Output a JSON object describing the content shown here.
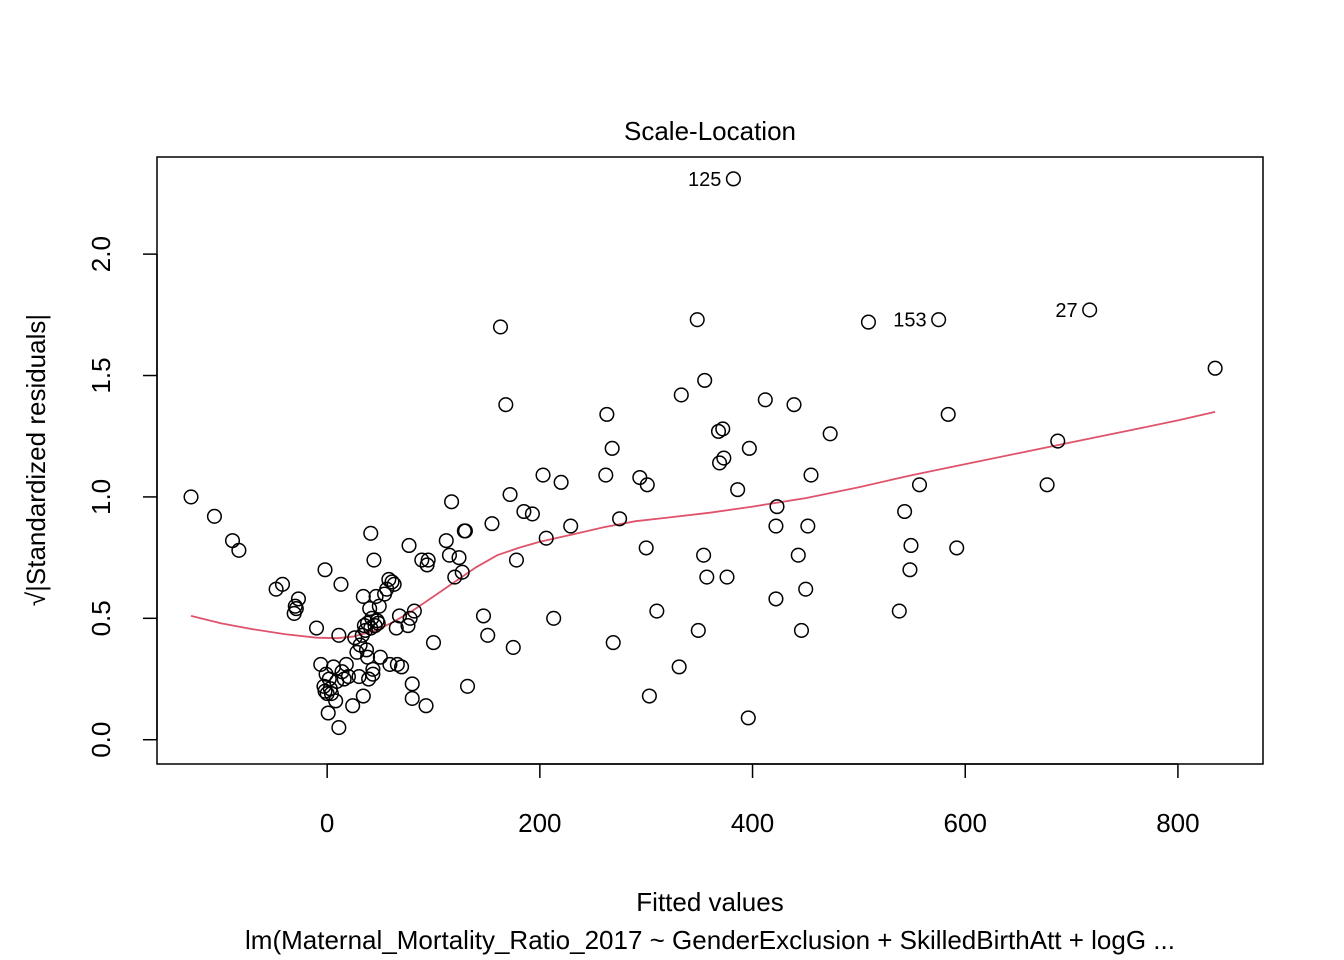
{
  "chart_data": {
    "type": "scatter",
    "title": "Scale-Location",
    "xlabel": "Fitted values",
    "ylabel": "√|Standardized residuals|",
    "subtitle": "lm(Maternal_Mortality_Ratio_2017 ~ GenderExclusion + SkilledBirthAtt + logG ...",
    "xlim": [
      -160,
      880
    ],
    "ylim": [
      -0.1,
      2.4
    ],
    "x_ticks": [
      0,
      200,
      400,
      600,
      800
    ],
    "x_tick_labels": [
      "0",
      "200",
      "400",
      "600",
      "800"
    ],
    "y_ticks": [
      0.0,
      0.5,
      1.0,
      1.5,
      2.0
    ],
    "y_tick_labels": [
      "0.0",
      "0.5",
      "1.0",
      "1.5",
      "2.0"
    ],
    "grid": false,
    "colors": {
      "points": "#000000",
      "smooth": "#DF536B"
    },
    "points": [
      {
        "x": -128,
        "y": 1.0
      },
      {
        "x": -106,
        "y": 0.92
      },
      {
        "x": -89,
        "y": 0.82
      },
      {
        "x": -83,
        "y": 0.78
      },
      {
        "x": -48,
        "y": 0.62
      },
      {
        "x": -42,
        "y": 0.64
      },
      {
        "x": -31,
        "y": 0.52
      },
      {
        "x": -30,
        "y": 0.55
      },
      {
        "x": -29,
        "y": 0.54
      },
      {
        "x": -27,
        "y": 0.58
      },
      {
        "x": -10,
        "y": 0.46
      },
      {
        "x": -6,
        "y": 0.31
      },
      {
        "x": -3,
        "y": 0.22
      },
      {
        "x": -2,
        "y": 0.7
      },
      {
        "x": -2,
        "y": 0.2
      },
      {
        "x": -1,
        "y": 0.27
      },
      {
        "x": 0,
        "y": 0.19
      },
      {
        "x": 1,
        "y": 0.11
      },
      {
        "x": 2,
        "y": 0.25
      },
      {
        "x": 3,
        "y": 0.21
      },
      {
        "x": 4,
        "y": 0.19
      },
      {
        "x": 6,
        "y": 0.3
      },
      {
        "x": 8,
        "y": 0.16
      },
      {
        "x": 9,
        "y": 0.24
      },
      {
        "x": 11,
        "y": 0.43
      },
      {
        "x": 11,
        "y": 0.05
      },
      {
        "x": 13,
        "y": 0.64
      },
      {
        "x": 14,
        "y": 0.28
      },
      {
        "x": 16,
        "y": 0.25
      },
      {
        "x": 18,
        "y": 0.31
      },
      {
        "x": 20,
        "y": 0.26
      },
      {
        "x": 24,
        "y": 0.14
      },
      {
        "x": 26,
        "y": 0.42
      },
      {
        "x": 28,
        "y": 0.36
      },
      {
        "x": 30,
        "y": 0.26
      },
      {
        "x": 31,
        "y": 0.39
      },
      {
        "x": 33,
        "y": 0.43
      },
      {
        "x": 34,
        "y": 0.18
      },
      {
        "x": 34,
        "y": 0.59
      },
      {
        "x": 35,
        "y": 0.47
      },
      {
        "x": 36,
        "y": 0.45
      },
      {
        "x": 37,
        "y": 0.37
      },
      {
        "x": 38,
        "y": 0.48
      },
      {
        "x": 38,
        "y": 0.34
      },
      {
        "x": 39,
        "y": 0.25
      },
      {
        "x": 40,
        "y": 0.54
      },
      {
        "x": 41,
        "y": 0.85
      },
      {
        "x": 41,
        "y": 0.46
      },
      {
        "x": 42,
        "y": 0.5
      },
      {
        "x": 43,
        "y": 0.29
      },
      {
        "x": 43,
        "y": 0.27
      },
      {
        "x": 44,
        "y": 0.74
      },
      {
        "x": 45,
        "y": 0.47
      },
      {
        "x": 46,
        "y": 0.59
      },
      {
        "x": 47,
        "y": 0.49
      },
      {
        "x": 48,
        "y": 0.48
      },
      {
        "x": 49,
        "y": 0.55
      },
      {
        "x": 50,
        "y": 0.34
      },
      {
        "x": 54,
        "y": 0.6
      },
      {
        "x": 56,
        "y": 0.62
      },
      {
        "x": 58,
        "y": 0.66
      },
      {
        "x": 59,
        "y": 0.31
      },
      {
        "x": 61,
        "y": 0.65
      },
      {
        "x": 63,
        "y": 0.64
      },
      {
        "x": 65,
        "y": 0.46
      },
      {
        "x": 66,
        "y": 0.31
      },
      {
        "x": 68,
        "y": 0.51
      },
      {
        "x": 70,
        "y": 0.3
      },
      {
        "x": 76,
        "y": 0.47
      },
      {
        "x": 77,
        "y": 0.8
      },
      {
        "x": 78,
        "y": 0.5
      },
      {
        "x": 80,
        "y": 0.17
      },
      {
        "x": 80,
        "y": 0.23
      },
      {
        "x": 82,
        "y": 0.53
      },
      {
        "x": 89,
        "y": 0.74
      },
      {
        "x": 93,
        "y": 0.14
      },
      {
        "x": 94,
        "y": 0.72
      },
      {
        "x": 95,
        "y": 0.74
      },
      {
        "x": 100,
        "y": 0.4
      },
      {
        "x": 112,
        "y": 0.82
      },
      {
        "x": 115,
        "y": 0.76
      },
      {
        "x": 117,
        "y": 0.98
      },
      {
        "x": 120,
        "y": 0.67
      },
      {
        "x": 124,
        "y": 0.75
      },
      {
        "x": 127,
        "y": 0.69
      },
      {
        "x": 129,
        "y": 0.86
      },
      {
        "x": 130,
        "y": 0.86
      },
      {
        "x": 132,
        "y": 0.22
      },
      {
        "x": 147,
        "y": 0.51
      },
      {
        "x": 151,
        "y": 0.43
      },
      {
        "x": 155,
        "y": 0.89
      },
      {
        "x": 163,
        "y": 1.7
      },
      {
        "x": 168,
        "y": 1.38
      },
      {
        "x": 172,
        "y": 1.01
      },
      {
        "x": 175,
        "y": 0.38
      },
      {
        "x": 178,
        "y": 0.74
      },
      {
        "x": 185,
        "y": 0.94
      },
      {
        "x": 193,
        "y": 0.93
      },
      {
        "x": 203,
        "y": 1.09
      },
      {
        "x": 206,
        "y": 0.83
      },
      {
        "x": 213,
        "y": 0.5
      },
      {
        "x": 220,
        "y": 1.06
      },
      {
        "x": 229,
        "y": 0.88
      },
      {
        "x": 262,
        "y": 1.09
      },
      {
        "x": 263,
        "y": 1.34
      },
      {
        "x": 268,
        "y": 1.2
      },
      {
        "x": 269,
        "y": 0.4
      },
      {
        "x": 275,
        "y": 0.91
      },
      {
        "x": 294,
        "y": 1.08
      },
      {
        "x": 300,
        "y": 0.79
      },
      {
        "x": 301,
        "y": 1.05
      },
      {
        "x": 303,
        "y": 0.18
      },
      {
        "x": 310,
        "y": 0.53
      },
      {
        "x": 331,
        "y": 0.3
      },
      {
        "x": 333,
        "y": 1.42
      },
      {
        "x": 348,
        "y": 1.73
      },
      {
        "x": 349,
        "y": 0.45
      },
      {
        "x": 354,
        "y": 0.76
      },
      {
        "x": 355,
        "y": 1.48
      },
      {
        "x": 357,
        "y": 0.67
      },
      {
        "x": 368,
        "y": 1.27
      },
      {
        "x": 369,
        "y": 1.14
      },
      {
        "x": 372,
        "y": 1.28
      },
      {
        "x": 373,
        "y": 1.16
      },
      {
        "x": 376,
        "y": 0.67
      },
      {
        "x": 382,
        "y": 2.31,
        "label": "125"
      },
      {
        "x": 386,
        "y": 1.03
      },
      {
        "x": 396,
        "y": 0.09
      },
      {
        "x": 397,
        "y": 1.2
      },
      {
        "x": 412,
        "y": 1.4
      },
      {
        "x": 422,
        "y": 0.88
      },
      {
        "x": 422,
        "y": 0.58
      },
      {
        "x": 423,
        "y": 0.96
      },
      {
        "x": 439,
        "y": 1.38
      },
      {
        "x": 443,
        "y": 0.76
      },
      {
        "x": 446,
        "y": 0.45
      },
      {
        "x": 450,
        "y": 0.62
      },
      {
        "x": 452,
        "y": 0.88
      },
      {
        "x": 455,
        "y": 1.09
      },
      {
        "x": 473,
        "y": 1.26
      },
      {
        "x": 509,
        "y": 1.72
      },
      {
        "x": 538,
        "y": 0.53
      },
      {
        "x": 543,
        "y": 0.94
      },
      {
        "x": 548,
        "y": 0.7
      },
      {
        "x": 549,
        "y": 0.8
      },
      {
        "x": 557,
        "y": 1.05
      },
      {
        "x": 575,
        "y": 1.73,
        "label": "153"
      },
      {
        "x": 584,
        "y": 1.34
      },
      {
        "x": 592,
        "y": 0.79
      },
      {
        "x": 677,
        "y": 1.05
      },
      {
        "x": 687,
        "y": 1.23
      },
      {
        "x": 717,
        "y": 1.77,
        "label": "27"
      },
      {
        "x": 835,
        "y": 1.53
      }
    ],
    "smooth": [
      {
        "x": -128,
        "y": 0.51
      },
      {
        "x": -100,
        "y": 0.48
      },
      {
        "x": -70,
        "y": 0.455
      },
      {
        "x": -40,
        "y": 0.435
      },
      {
        "x": -10,
        "y": 0.42
      },
      {
        "x": 10,
        "y": 0.418
      },
      {
        "x": 25,
        "y": 0.425
      },
      {
        "x": 45,
        "y": 0.45
      },
      {
        "x": 60,
        "y": 0.48
      },
      {
        "x": 80,
        "y": 0.53
      },
      {
        "x": 100,
        "y": 0.59
      },
      {
        "x": 120,
        "y": 0.65
      },
      {
        "x": 140,
        "y": 0.71
      },
      {
        "x": 160,
        "y": 0.76
      },
      {
        "x": 180,
        "y": 0.79
      },
      {
        "x": 200,
        "y": 0.815
      },
      {
        "x": 230,
        "y": 0.845
      },
      {
        "x": 260,
        "y": 0.875
      },
      {
        "x": 290,
        "y": 0.9
      },
      {
        "x": 320,
        "y": 0.915
      },
      {
        "x": 360,
        "y": 0.935
      },
      {
        "x": 400,
        "y": 0.96
      },
      {
        "x": 450,
        "y": 0.995
      },
      {
        "x": 500,
        "y": 1.04
      },
      {
        "x": 550,
        "y": 1.09
      },
      {
        "x": 600,
        "y": 1.135
      },
      {
        "x": 650,
        "y": 1.18
      },
      {
        "x": 700,
        "y": 1.225
      },
      {
        "x": 750,
        "y": 1.27
      },
      {
        "x": 800,
        "y": 1.315
      },
      {
        "x": 835,
        "y": 1.35
      }
    ]
  }
}
